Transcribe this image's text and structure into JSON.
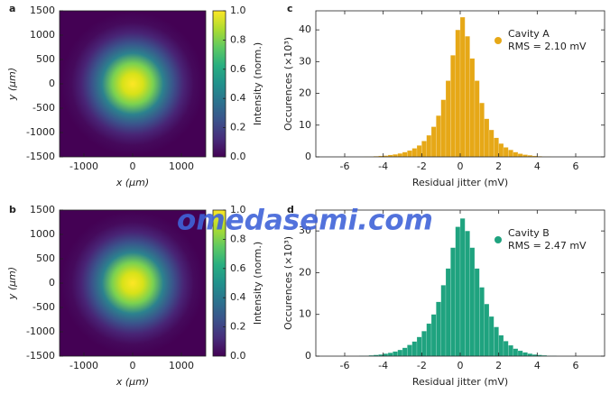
{
  "chart_data": [
    {
      "type": "heatmap",
      "panel": "a",
      "xlabel": "x (μm)",
      "ylabel": "y (μm)",
      "xlim": [
        -1500,
        1500
      ],
      "ylim": [
        -1500,
        1500
      ],
      "xticks": [
        -1000,
        0,
        1000
      ],
      "yticks": [
        -1500,
        -1000,
        -500,
        0,
        500,
        1000,
        1500
      ],
      "colorbar": {
        "label": "Intensity (norm.)",
        "lim": [
          0,
          1
        ],
        "ticks": [
          {
            "value": 0,
            "label": "0.0"
          },
          {
            "value": 0.2,
            "label": "0.2"
          },
          {
            "value": 0.4,
            "label": "0.4"
          },
          {
            "value": 0.6,
            "label": "0.6"
          },
          {
            "value": 0.8,
            "label": "0.8"
          },
          {
            "value": 1,
            "label": "1.0"
          }
        ]
      }
    },
    {
      "type": "histogram",
      "panel": "c",
      "xlabel": "Residual jitter (mV)",
      "ylabel": "Occurences (×10³)",
      "xlim": [
        -7.5,
        7.5
      ],
      "ylim": [
        0,
        46
      ],
      "xticks": [
        -6,
        -4,
        -2,
        0,
        2,
        4,
        6
      ],
      "yticks": [
        0,
        10,
        20,
        30,
        40
      ],
      "bins": [
        -6,
        -5.75,
        -5.5,
        -5.25,
        -5,
        -4.75,
        -4.5,
        -4.25,
        -4,
        -3.75,
        -3.5,
        -3.25,
        -3,
        -2.75,
        -2.5,
        -2.25,
        -2,
        -1.75,
        -1.5,
        -1.25,
        -1,
        -0.75,
        -0.5,
        -0.25,
        0,
        0.25,
        0.5,
        0.75,
        1,
        1.25,
        1.5,
        1.75,
        2,
        2.25,
        2.5,
        2.75,
        3,
        3.25,
        3.5,
        3.75,
        4,
        4.25,
        4.5,
        4.75,
        5,
        5.25,
        5.5,
        5.75,
        6
      ],
      "series": [
        {
          "name": "Cavity A",
          "color": "#e6a817",
          "values": [
            0,
            0,
            0,
            0,
            0.1,
            0.1,
            0.2,
            0.3,
            0.4,
            0.6,
            0.8,
            1.1,
            1.5,
            2,
            2.7,
            3.6,
            5,
            6.8,
            9.5,
            13,
            18,
            24,
            32,
            40,
            44,
            38,
            31,
            24,
            17,
            12,
            8.5,
            6,
            4.2,
            3,
            2.2,
            1.5,
            1,
            0.7,
            0.5,
            0.3,
            0.2,
            0.1,
            0.1,
            0,
            0,
            0,
            0,
            0
          ]
        }
      ],
      "annotation": "RMS = 2.10 mV"
    },
    {
      "type": "heatmap",
      "panel": "b",
      "xlabel": "x (μm)",
      "ylabel": "y (μm)",
      "xlim": [
        -1500,
        1500
      ],
      "ylim": [
        -1500,
        1500
      ],
      "xticks": [
        -1000,
        0,
        1000
      ],
      "yticks": [
        -1500,
        -1000,
        -500,
        0,
        500,
        1000,
        1500
      ],
      "colorbar": {
        "label": "Intensity (norm.)",
        "lim": [
          0,
          1
        ],
        "ticks": [
          {
            "value": 0,
            "label": "0.0"
          },
          {
            "value": 0.2,
            "label": "0.2"
          },
          {
            "value": 0.4,
            "label": "0.4"
          },
          {
            "value": 0.6,
            "label": "0.6"
          },
          {
            "value": 0.8,
            "label": "0.8"
          },
          {
            "value": 1,
            "label": "1.0"
          }
        ]
      }
    },
    {
      "type": "histogram",
      "panel": "d",
      "xlabel": "Residual jitter (mV)",
      "ylabel": "Occurences (×10³)",
      "xlim": [
        -7.5,
        7.5
      ],
      "ylim": [
        0,
        35
      ],
      "xticks": [
        -6,
        -4,
        -2,
        0,
        2,
        4,
        6
      ],
      "yticks": [
        0,
        10,
        20,
        30
      ],
      "bins": [
        -6,
        -5.75,
        -5.5,
        -5.25,
        -5,
        -4.75,
        -4.5,
        -4.25,
        -4,
        -3.75,
        -3.5,
        -3.25,
        -3,
        -2.75,
        -2.5,
        -2.25,
        -2,
        -1.75,
        -1.5,
        -1.25,
        -1,
        -0.75,
        -0.5,
        -0.25,
        0,
        0.25,
        0.5,
        0.75,
        1,
        1.25,
        1.5,
        1.75,
        2,
        2.25,
        2.5,
        2.75,
        3,
        3.25,
        3.5,
        3.75,
        4,
        4.25,
        4.5,
        4.75,
        5,
        5.25,
        5.5,
        5.75,
        6
      ],
      "series": [
        {
          "name": "Cavity B",
          "color": "#1fa37f",
          "values": [
            0,
            0,
            0,
            0.1,
            0.1,
            0.2,
            0.3,
            0.4,
            0.6,
            0.8,
            1.1,
            1.5,
            2,
            2.7,
            3.5,
            4.6,
            6,
            7.8,
            10,
            13,
            17,
            21,
            26,
            31,
            33,
            30,
            26,
            21,
            16.5,
            12.5,
            9.5,
            7,
            5,
            3.6,
            2.6,
            1.8,
            1.3,
            0.9,
            0.6,
            0.4,
            0.3,
            0.2,
            0.1,
            0.1,
            0,
            0,
            0,
            0
          ]
        }
      ],
      "annotation": "RMS = 2.47 mV"
    }
  ],
  "watermark": "omedasemi.com"
}
